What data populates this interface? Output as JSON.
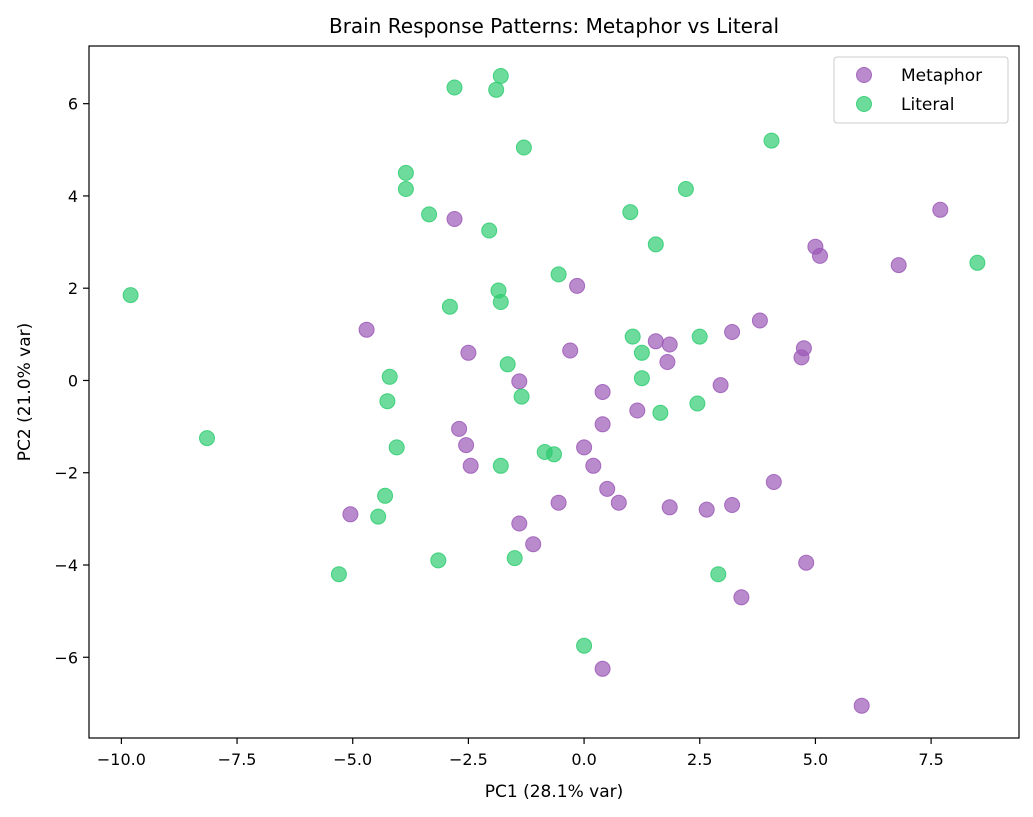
{
  "chart_data": {
    "type": "scatter",
    "title": "Brain Response Patterns: Metaphor vs Literal",
    "xlabel": "PC1 (28.1% var)",
    "ylabel": "PC2 (21.0% var)",
    "xlim": [
      -10.7,
      9.4
    ],
    "ylim": [
      -7.75,
      7.25
    ],
    "xticks": [
      -10.0,
      -7.5,
      -5.0,
      -2.5,
      0.0,
      2.5,
      5.0,
      7.5
    ],
    "xtick_labels": [
      "−10.0",
      "−7.5",
      "−5.0",
      "−2.5",
      "0.0",
      "2.5",
      "5.0",
      "7.5"
    ],
    "yticks": [
      -6,
      -4,
      -2,
      0,
      2,
      4,
      6
    ],
    "ytick_labels": [
      "−6",
      "−4",
      "−2",
      "0",
      "2",
      "4",
      "6"
    ],
    "grid": false,
    "legend_position": "top-right",
    "series": [
      {
        "name": "Metaphor",
        "color": "#9b59b6",
        "points": [
          [
            -2.8,
            3.5
          ],
          [
            -4.7,
            1.1
          ],
          [
            -2.5,
            0.6
          ],
          [
            -2.7,
            -1.05
          ],
          [
            -2.55,
            -1.4
          ],
          [
            -2.45,
            -1.85
          ],
          [
            -5.05,
            -2.9
          ],
          [
            -1.4,
            -0.02
          ],
          [
            -1.4,
            -3.1
          ],
          [
            -1.1,
            -3.55
          ],
          [
            -0.3,
            0.65
          ],
          [
            -0.15,
            2.05
          ],
          [
            0.0,
            -1.45
          ],
          [
            0.2,
            -1.85
          ],
          [
            0.4,
            -0.25
          ],
          [
            0.4,
            -0.95
          ],
          [
            0.5,
            -2.35
          ],
          [
            0.75,
            -2.65
          ],
          [
            -0.55,
            -2.65
          ],
          [
            1.15,
            -0.65
          ],
          [
            1.55,
            0.85
          ],
          [
            1.8,
            0.4
          ],
          [
            1.85,
            0.78
          ],
          [
            1.85,
            -2.75
          ],
          [
            2.65,
            -2.8
          ],
          [
            2.95,
            -0.1
          ],
          [
            3.2,
            1.05
          ],
          [
            3.2,
            -2.7
          ],
          [
            3.4,
            -4.7
          ],
          [
            3.8,
            1.3
          ],
          [
            4.1,
            -2.2
          ],
          [
            4.7,
            0.5
          ],
          [
            4.75,
            0.7
          ],
          [
            4.8,
            -3.95
          ],
          [
            5.0,
            2.9
          ],
          [
            5.1,
            2.7
          ],
          [
            6.8,
            2.5
          ],
          [
            7.7,
            3.7
          ],
          [
            6.0,
            -7.05
          ],
          [
            0.4,
            -6.25
          ]
        ]
      },
      {
        "name": "Literal",
        "color": "#2ecc71",
        "points": [
          [
            -9.8,
            1.85
          ],
          [
            -8.15,
            -1.25
          ],
          [
            -5.3,
            -4.2
          ],
          [
            -4.45,
            -2.95
          ],
          [
            -4.3,
            -2.5
          ],
          [
            -4.2,
            0.08
          ],
          [
            -4.25,
            -0.45
          ],
          [
            -4.05,
            -1.45
          ],
          [
            -3.85,
            4.5
          ],
          [
            -3.85,
            4.15
          ],
          [
            -3.35,
            3.6
          ],
          [
            -3.15,
            -3.9
          ],
          [
            -2.9,
            1.6
          ],
          [
            -2.8,
            6.35
          ],
          [
            -2.05,
            3.25
          ],
          [
            -1.9,
            6.3
          ],
          [
            -1.85,
            1.95
          ],
          [
            -1.8,
            1.7
          ],
          [
            -1.8,
            6.6
          ],
          [
            -1.8,
            -1.85
          ],
          [
            -1.65,
            0.35
          ],
          [
            -1.5,
            -3.85
          ],
          [
            -1.35,
            -0.35
          ],
          [
            -1.3,
            5.05
          ],
          [
            -0.85,
            -1.55
          ],
          [
            -0.65,
            -1.6
          ],
          [
            -0.55,
            2.3
          ],
          [
            0.0,
            -5.75
          ],
          [
            1.0,
            3.65
          ],
          [
            1.05,
            0.95
          ],
          [
            1.25,
            0.6
          ],
          [
            1.25,
            0.05
          ],
          [
            1.55,
            2.95
          ],
          [
            1.65,
            -0.7
          ],
          [
            2.2,
            4.15
          ],
          [
            2.45,
            -0.5
          ],
          [
            2.5,
            0.95
          ],
          [
            2.9,
            -4.2
          ],
          [
            4.05,
            5.2
          ],
          [
            8.5,
            2.55
          ]
        ]
      }
    ]
  }
}
